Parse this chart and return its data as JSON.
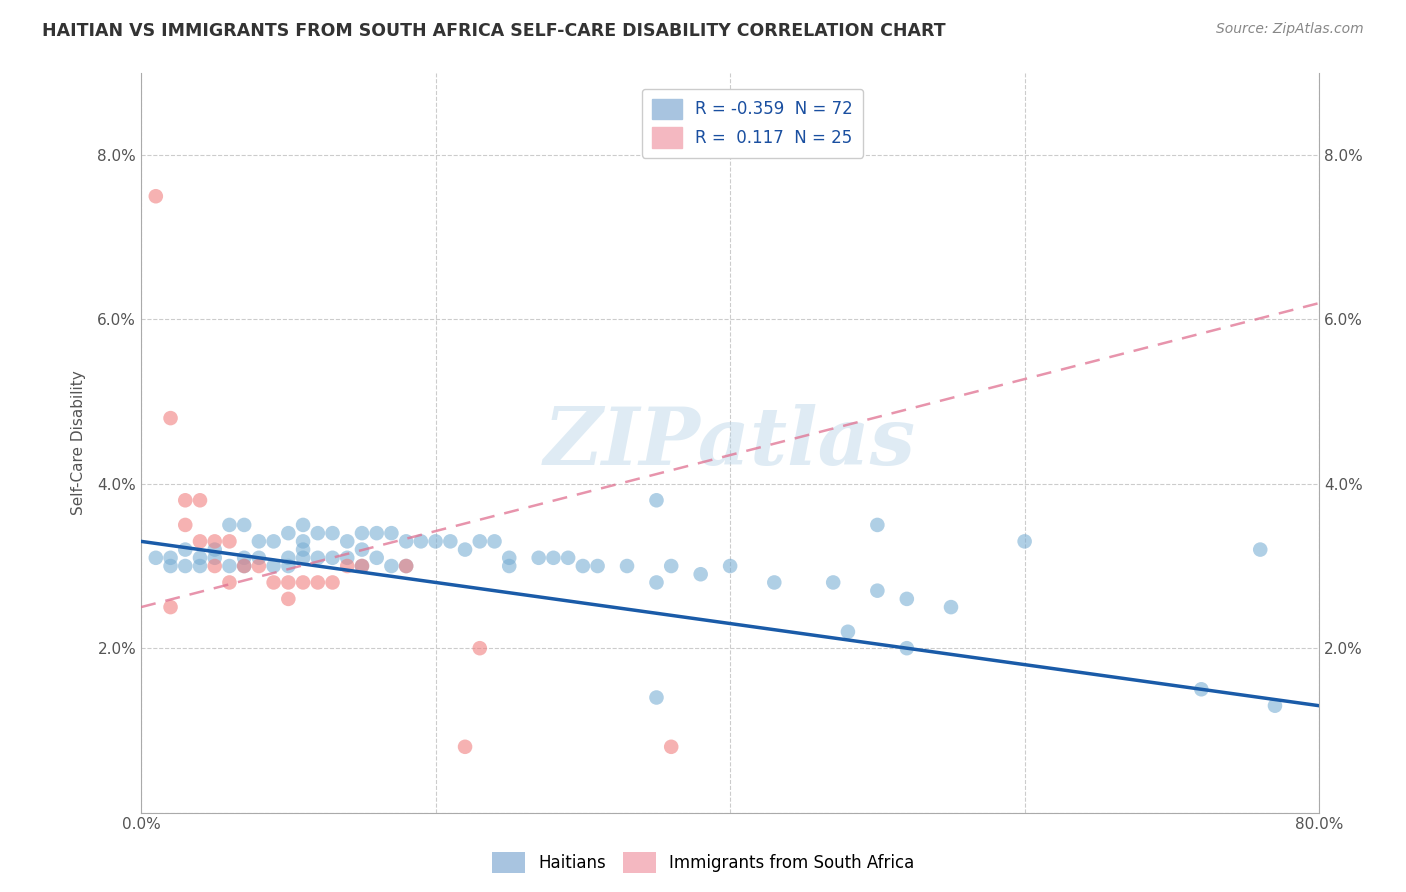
{
  "title": "HAITIAN VS IMMIGRANTS FROM SOUTH AFRICA SELF-CARE DISABILITY CORRELATION CHART",
  "source": "Source: ZipAtlas.com",
  "ylabel": "Self-Care Disability",
  "xlim": [
    0.0,
    0.8
  ],
  "ylim": [
    0.0,
    0.09
  ],
  "xticks": [
    0.0,
    0.2,
    0.4,
    0.6,
    0.8
  ],
  "xticklabels": [
    "0.0%",
    "",
    "",
    "",
    "80.0%"
  ],
  "yticks": [
    0.0,
    0.02,
    0.04,
    0.06,
    0.08
  ],
  "yticklabels": [
    "",
    "2.0%",
    "4.0%",
    "6.0%",
    "8.0%"
  ],
  "haitian_color": "#7bafd4",
  "south_africa_color": "#f08080",
  "trendline_haitian_color": "#1a5ba8",
  "trendline_south_africa_color": "#e07090",
  "watermark": "ZIPatlas",
  "background_color": "#ffffff",
  "grid_color": "#cccccc",
  "haitian_points": [
    [
      0.01,
      0.031
    ],
    [
      0.02,
      0.031
    ],
    [
      0.02,
      0.03
    ],
    [
      0.03,
      0.03
    ],
    [
      0.03,
      0.032
    ],
    [
      0.04,
      0.03
    ],
    [
      0.04,
      0.031
    ],
    [
      0.05,
      0.032
    ],
    [
      0.05,
      0.031
    ],
    [
      0.06,
      0.035
    ],
    [
      0.06,
      0.03
    ],
    [
      0.07,
      0.035
    ],
    [
      0.07,
      0.031
    ],
    [
      0.07,
      0.03
    ],
    [
      0.08,
      0.033
    ],
    [
      0.08,
      0.031
    ],
    [
      0.09,
      0.033
    ],
    [
      0.09,
      0.03
    ],
    [
      0.1,
      0.034
    ],
    [
      0.1,
      0.031
    ],
    [
      0.1,
      0.03
    ],
    [
      0.11,
      0.035
    ],
    [
      0.11,
      0.033
    ],
    [
      0.11,
      0.032
    ],
    [
      0.11,
      0.031
    ],
    [
      0.12,
      0.034
    ],
    [
      0.12,
      0.031
    ],
    [
      0.13,
      0.034
    ],
    [
      0.13,
      0.031
    ],
    [
      0.14,
      0.033
    ],
    [
      0.14,
      0.031
    ],
    [
      0.15,
      0.034
    ],
    [
      0.15,
      0.032
    ],
    [
      0.15,
      0.03
    ],
    [
      0.16,
      0.034
    ],
    [
      0.16,
      0.031
    ],
    [
      0.17,
      0.034
    ],
    [
      0.17,
      0.03
    ],
    [
      0.18,
      0.033
    ],
    [
      0.18,
      0.03
    ],
    [
      0.19,
      0.033
    ],
    [
      0.2,
      0.033
    ],
    [
      0.21,
      0.033
    ],
    [
      0.22,
      0.032
    ],
    [
      0.23,
      0.033
    ],
    [
      0.24,
      0.033
    ],
    [
      0.25,
      0.031
    ],
    [
      0.25,
      0.03
    ],
    [
      0.27,
      0.031
    ],
    [
      0.28,
      0.031
    ],
    [
      0.29,
      0.031
    ],
    [
      0.3,
      0.03
    ],
    [
      0.31,
      0.03
    ],
    [
      0.33,
      0.03
    ],
    [
      0.35,
      0.028
    ],
    [
      0.36,
      0.03
    ],
    [
      0.38,
      0.029
    ],
    [
      0.4,
      0.03
    ],
    [
      0.43,
      0.028
    ],
    [
      0.47,
      0.028
    ],
    [
      0.5,
      0.027
    ],
    [
      0.52,
      0.026
    ],
    [
      0.55,
      0.025
    ],
    [
      0.35,
      0.038
    ],
    [
      0.5,
      0.035
    ],
    [
      0.6,
      0.033
    ],
    [
      0.35,
      0.014
    ],
    [
      0.48,
      0.022
    ],
    [
      0.52,
      0.02
    ],
    [
      0.72,
      0.015
    ],
    [
      0.77,
      0.013
    ],
    [
      0.76,
      0.032
    ]
  ],
  "south_africa_points": [
    [
      0.01,
      0.075
    ],
    [
      0.02,
      0.048
    ],
    [
      0.03,
      0.038
    ],
    [
      0.03,
      0.035
    ],
    [
      0.04,
      0.038
    ],
    [
      0.04,
      0.033
    ],
    [
      0.05,
      0.033
    ],
    [
      0.05,
      0.03
    ],
    [
      0.06,
      0.033
    ],
    [
      0.06,
      0.028
    ],
    [
      0.07,
      0.03
    ],
    [
      0.08,
      0.03
    ],
    [
      0.09,
      0.028
    ],
    [
      0.1,
      0.028
    ],
    [
      0.1,
      0.026
    ],
    [
      0.11,
      0.028
    ],
    [
      0.12,
      0.028
    ],
    [
      0.13,
      0.028
    ],
    [
      0.14,
      0.03
    ],
    [
      0.15,
      0.03
    ],
    [
      0.18,
      0.03
    ],
    [
      0.23,
      0.02
    ],
    [
      0.22,
      0.008
    ],
    [
      0.36,
      0.008
    ],
    [
      0.02,
      0.025
    ]
  ],
  "haitian_trendline": [
    0.0,
    0.8,
    0.033,
    0.013
  ],
  "sa_trendline": [
    0.0,
    0.8,
    0.025,
    0.062
  ]
}
